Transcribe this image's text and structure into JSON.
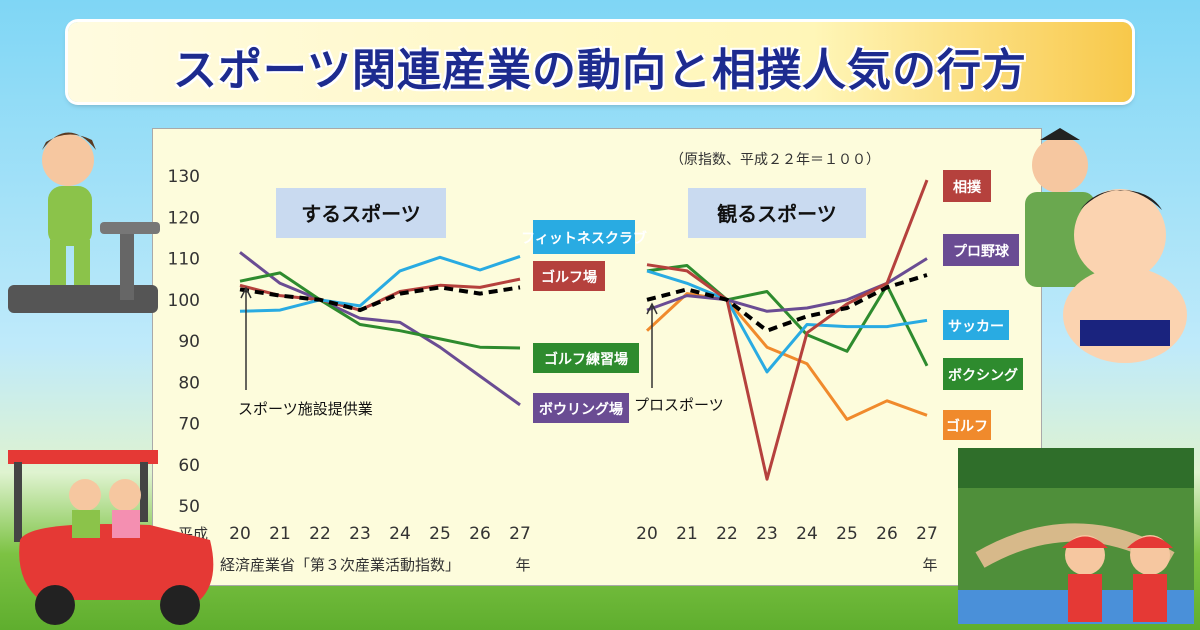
{
  "banner": {
    "title": "スポーツ関連産業の動向と相撲人気の行方"
  },
  "chart_data": {
    "type": "line",
    "note": "（原指数、平成２２年＝１００）",
    "source": "：経済産業省「第３次産業活動指数」",
    "year_unit": "年",
    "era_label": "平成",
    "ylim": [
      50,
      130
    ],
    "y_ticks": [
      50,
      60,
      70,
      80,
      90,
      100,
      110,
      120,
      130
    ],
    "x_categories": [
      "20",
      "21",
      "22",
      "23",
      "24",
      "25",
      "26",
      "27"
    ],
    "x_unit_left": "年",
    "x_unit_right": "年",
    "panels": [
      {
        "title": "するスポーツ",
        "aggregate_label": "スポーツ施設提供業",
        "series": [
          {
            "name": "スポーツ施設提供業",
            "color": "#000000",
            "dashed": true,
            "values": [
              102.5,
              101,
              100,
              97.5,
              101.5,
              103,
              101.5,
              103
            ]
          },
          {
            "name": "フィットネスクラブ",
            "color": "#29abe2",
            "values": [
              97.2,
              97.5,
              100,
              98.5,
              107,
              110.3,
              107.2,
              110.5
            ]
          },
          {
            "name": "ゴルフ場",
            "color": "#b5413d",
            "values": [
              103.5,
              101,
              100,
              97.5,
              102,
              103.5,
              103,
              105
            ]
          },
          {
            "name": "ゴルフ練習場",
            "color": "#2e8b2e",
            "values": [
              104.5,
              106.5,
              100,
              94,
              92.5,
              90.5,
              88.5,
              88.3
            ]
          },
          {
            "name": "ボウリング場",
            "color": "#6a4c93",
            "values": [
              111.5,
              104,
              100,
              95.5,
              94.5,
              88.5,
              81.5,
              74.5
            ]
          }
        ]
      },
      {
        "title": "観るスポーツ",
        "aggregate_label": "プロスポーツ",
        "series": [
          {
            "name": "プロスポーツ",
            "color": "#000000",
            "dashed": true,
            "values": [
              100,
              102.5,
              100,
              92.5,
              96,
              98,
              103,
              106
            ]
          },
          {
            "name": "相撲",
            "color": "#b5413d",
            "values": [
              108.5,
              107,
              100,
              56.5,
              92,
              99,
              104,
              129
            ]
          },
          {
            "name": "プロ野球",
            "color": "#6a4c93",
            "values": [
              97.5,
              101,
              100,
              97.2,
              98,
              100,
              104,
              110
            ]
          },
          {
            "name": "サッカー",
            "color": "#29abe2",
            "values": [
              107,
              104,
              100,
              82.5,
              94,
              93.5,
              93.5,
              95
            ]
          },
          {
            "name": "ボクシング",
            "color": "#2e8b2e",
            "values": [
              107,
              108.3,
              100,
              102,
              91.5,
              87.5,
              103.5,
              84
            ]
          },
          {
            "name": "ゴルフ",
            "color": "#f08a2c",
            "values": [
              92.5,
              101.5,
              100,
              88.5,
              84.5,
              71,
              75.5,
              72
            ]
          }
        ]
      }
    ]
  }
}
